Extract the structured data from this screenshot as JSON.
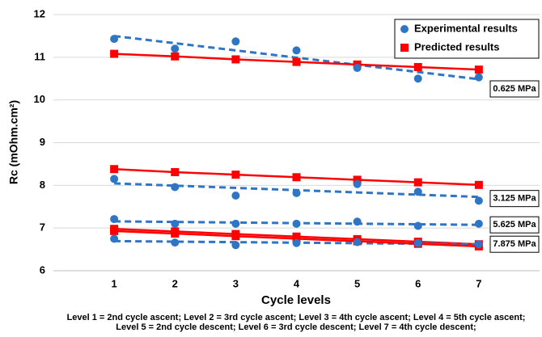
{
  "chart_data": {
    "type": "scatter-fit",
    "y_label": "Rc (mOhm.cm²)",
    "x_label": "Cycle levels",
    "notes": [
      "Level 1 = 2nd cycle ascent; Level 2 = 3rd cycle ascent; Level 3 = 4th cycle ascent; Level 4 = 5th cycle ascent;",
      "Level 5 = 2nd cycle descent; Level 6  = 3rd cycle descent; Level 7 = 4th cycle descent;"
    ],
    "x": [
      1,
      2,
      3,
      4,
      5,
      6,
      7
    ],
    "xlim": [
      0,
      8
    ],
    "xticks": [
      1,
      2,
      3,
      4,
      5,
      6,
      7
    ],
    "ylim": [
      6,
      12
    ],
    "yticks": [
      6,
      7,
      8,
      9,
      10,
      11,
      12
    ],
    "grid": true,
    "legend_position": "upper right",
    "series": [
      {
        "name": "Experimental results",
        "color": "#2e75c6"
      },
      {
        "name": "Predicted results",
        "color": "#ff0000"
      }
    ],
    "groups": [
      {
        "label": "0.625 MPa",
        "experimental": [
          11.43,
          11.2,
          11.37,
          11.16,
          10.75,
          10.5,
          10.53
        ],
        "predicted": [
          11.08,
          11.02,
          10.95,
          10.89,
          10.83,
          10.77,
          10.71
        ]
      },
      {
        "label": "3.125 MPa",
        "experimental": [
          8.15,
          7.96,
          7.76,
          7.82,
          8.03,
          7.85,
          7.64
        ],
        "predicted": [
          8.38,
          8.31,
          8.25,
          8.19,
          8.13,
          8.07,
          8.01
        ]
      },
      {
        "label": "5.625 MPa",
        "experimental": [
          7.21,
          7.1,
          7.1,
          7.1,
          7.15,
          7.05,
          7.1
        ],
        "predicted": [
          6.98,
          6.92,
          6.86,
          6.8,
          6.74,
          6.68,
          6.62
        ]
      },
      {
        "label": "7.875 MPa",
        "experimental": [
          6.75,
          6.66,
          6.6,
          6.65,
          6.67,
          6.65,
          6.62
        ],
        "predicted": [
          6.93,
          6.87,
          6.81,
          6.75,
          6.69,
          6.63,
          6.57
        ]
      }
    ]
  }
}
